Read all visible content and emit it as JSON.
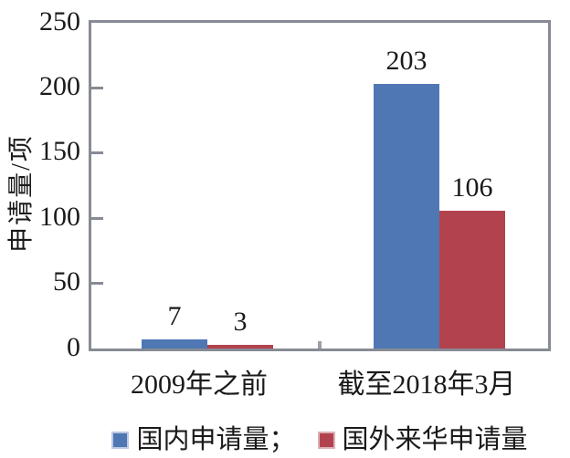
{
  "chart_data": {
    "type": "bar",
    "categories": [
      "2009年之前",
      "截至2018年3月"
    ],
    "series": [
      {
        "name": "国内申请量",
        "values": [
          7,
          203
        ],
        "color": "#4F77B4",
        "swatch_border": "#BCC9E2"
      },
      {
        "name": "国外来华申请量",
        "values": [
          3,
          106
        ],
        "color": "#B3424F",
        "swatch_border": "#DCB0B6"
      }
    ],
    "legend_labels": [
      "国内申请量；",
      "国外来华申请量"
    ],
    "ylabel": "申请量/项",
    "ylim": [
      0,
      250
    ],
    "yticks": [
      0,
      50,
      100,
      150,
      200,
      250
    ],
    "grid": false,
    "legend_position": "bottom",
    "axis_color": "#868B94",
    "text_color": "#1A1A1A"
  }
}
